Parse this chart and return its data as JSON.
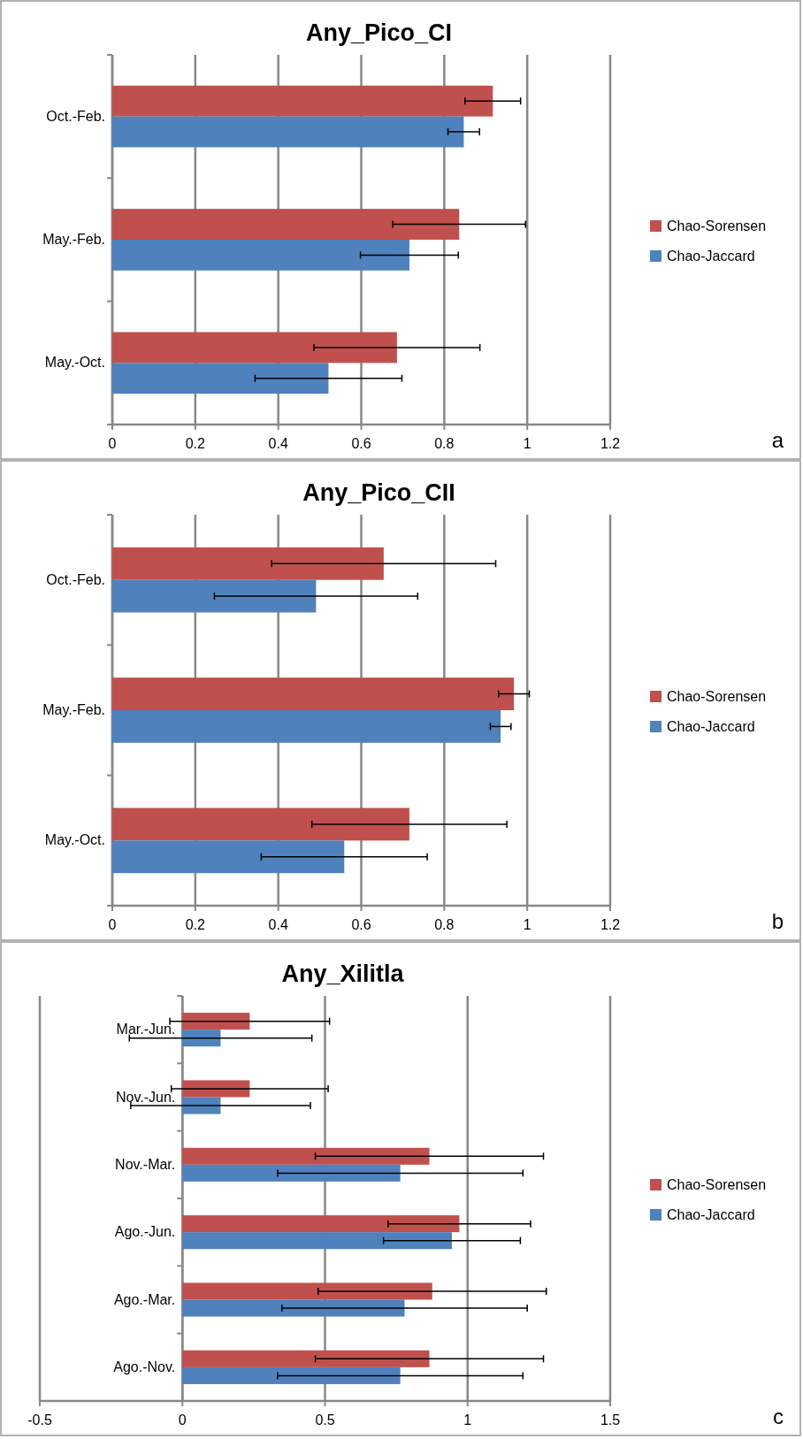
{
  "chart_data": [
    {
      "type": "bar",
      "orientation": "horizontal",
      "title": "Any_Pico_CI",
      "categories": [
        "Oct.-Feb.",
        "May.-Feb.",
        "May.-Oct."
      ],
      "series": [
        {
          "name": "Chao-Sorensen",
          "color": "#c0504d",
          "values": [
            0.917,
            0.836,
            0.686
          ],
          "errors": [
            0.067,
            0.16,
            0.2
          ]
        },
        {
          "name": "Chao-Jaccard",
          "color": "#4f81bd",
          "values": [
            0.847,
            0.716,
            0.521
          ],
          "errors": [
            0.038,
            0.118,
            0.177
          ]
        }
      ],
      "xlim": [
        0,
        1.2
      ],
      "xticks": [
        0,
        0.2,
        0.4,
        0.6,
        0.8,
        1,
        1.2
      ],
      "grid": "x",
      "legend": "right",
      "annotations": [
        "a"
      ]
    },
    {
      "type": "bar",
      "orientation": "horizontal",
      "title": "Any_Pico_CII",
      "categories": [
        "Oct.-Feb.",
        "May.-Feb.",
        "May.-Oct."
      ],
      "series": [
        {
          "name": "Chao-Sorensen",
          "color": "#c0504d",
          "values": [
            0.654,
            0.968,
            0.716
          ],
          "errors": [
            0.27,
            0.037,
            0.235
          ]
        },
        {
          "name": "Chao-Jaccard",
          "color": "#4f81bd",
          "values": [
            0.491,
            0.936,
            0.559
          ],
          "errors": [
            0.245,
            0.025,
            0.2
          ]
        }
      ],
      "xlim": [
        0,
        1.2
      ],
      "xticks": [
        0,
        0.2,
        0.4,
        0.6,
        0.8,
        1,
        1.2
      ],
      "grid": "x",
      "legend": "right",
      "annotations": [
        "b"
      ]
    },
    {
      "type": "bar",
      "orientation": "horizontal",
      "title": "Any_Xilitla",
      "categories": [
        "Mar.-Jun.",
        "Nov.-Jun.",
        "Nov.-Mar.",
        "Ago.-Jun.",
        "Ago.-Mar.",
        "Ago.-Nov."
      ],
      "series": [
        {
          "name": "Chao-Sorensen",
          "color": "#c0504d",
          "values": [
            0.236,
            0.236,
            0.866,
            0.971,
            0.876,
            0.866
          ],
          "errors": [
            0.28,
            0.275,
            0.4,
            0.25,
            0.4,
            0.4
          ]
        },
        {
          "name": "Chao-Jaccard",
          "color": "#4f81bd",
          "values": [
            0.134,
            0.134,
            0.764,
            0.945,
            0.779,
            0.764
          ],
          "errors": [
            0.32,
            0.315,
            0.43,
            0.24,
            0.43,
            0.43
          ]
        }
      ],
      "xlim": [
        -0.5,
        1.5
      ],
      "xticks": [
        -0.5,
        0,
        0.5,
        1,
        1.5
      ],
      "grid": "x",
      "legend": "right",
      "annotations": [
        "c"
      ]
    }
  ]
}
